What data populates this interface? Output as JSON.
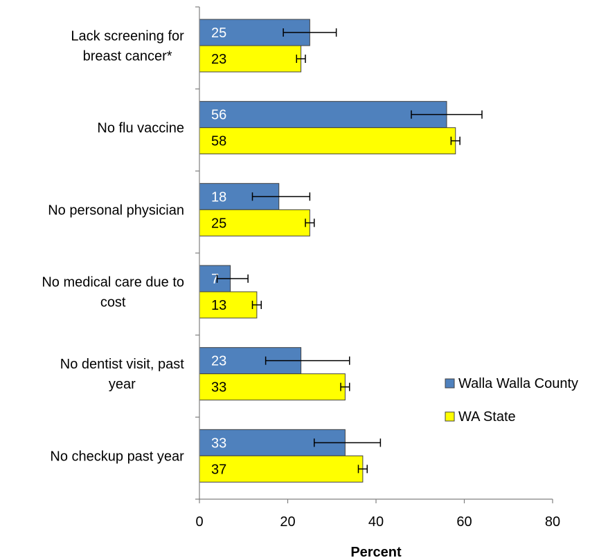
{
  "chart_data": {
    "type": "bar",
    "orientation": "horizontal",
    "categories": [
      [
        "Lack screening for",
        "breast cancer*"
      ],
      [
        "No flu vaccine"
      ],
      [
        "No personal physician"
      ],
      [
        "No medical care due to",
        "cost"
      ],
      [
        "No dentist visit, past",
        "year"
      ],
      [
        "No checkup past year"
      ]
    ],
    "series": [
      {
        "name": "Walla Walla County",
        "color": "#4F81BD",
        "label_color": "#FFFFFF",
        "values": [
          25,
          56,
          18,
          7,
          23,
          33
        ],
        "value_labels": [
          "25",
          "56",
          "18",
          "7",
          "23",
          "33"
        ],
        "error_low": [
          19,
          48,
          12,
          4,
          15,
          26
        ],
        "error_high": [
          31,
          64,
          25,
          11,
          34,
          41
        ]
      },
      {
        "name": "WA State",
        "color": "#FFFF00",
        "label_color": "#000000",
        "values": [
          23,
          58,
          25,
          13,
          33,
          37
        ],
        "value_labels": [
          "23",
          "58",
          "25",
          "13",
          "33",
          "37"
        ],
        "error_low": [
          22,
          57,
          24,
          12,
          32,
          36
        ],
        "error_high": [
          24,
          59,
          26,
          14,
          34,
          38
        ]
      }
    ],
    "xlabel": "Percent",
    "xlim": [
      0,
      80
    ],
    "xticks": [
      0,
      20,
      40,
      60,
      80
    ],
    "grid": false,
    "legend_position": "right"
  }
}
